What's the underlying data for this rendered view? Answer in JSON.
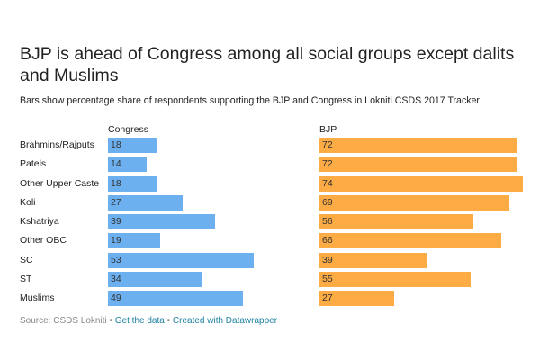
{
  "chart_data": {
    "type": "bar",
    "title": "BJP is ahead of Congress among all social groups except dalits and Muslims",
    "subtitle": "Bars show percentage share of respondents supporting the BJP and Congress in Lokniti CSDS 2017 Tracker",
    "categories": [
      "Brahmins/Rajputs",
      "Patels",
      "Other Upper Caste",
      "Koli",
      "Kshatriya",
      "Other OBC",
      "SC",
      "ST",
      "Muslims"
    ],
    "series": [
      {
        "name": "Congress",
        "color": "#6cb0f0",
        "values": [
          18,
          14,
          18,
          27,
          39,
          19,
          53,
          34,
          49
        ]
      },
      {
        "name": "BJP",
        "color": "#fcab45",
        "values": [
          72,
          72,
          74,
          69,
          56,
          66,
          39,
          55,
          27
        ]
      }
    ],
    "xlim": [
      0,
      75
    ]
  },
  "source": {
    "text": "Source: CSDS Lokniti",
    "sep": " • ",
    "get_data": "Get the data",
    "created": "Created with Datawrapper"
  }
}
